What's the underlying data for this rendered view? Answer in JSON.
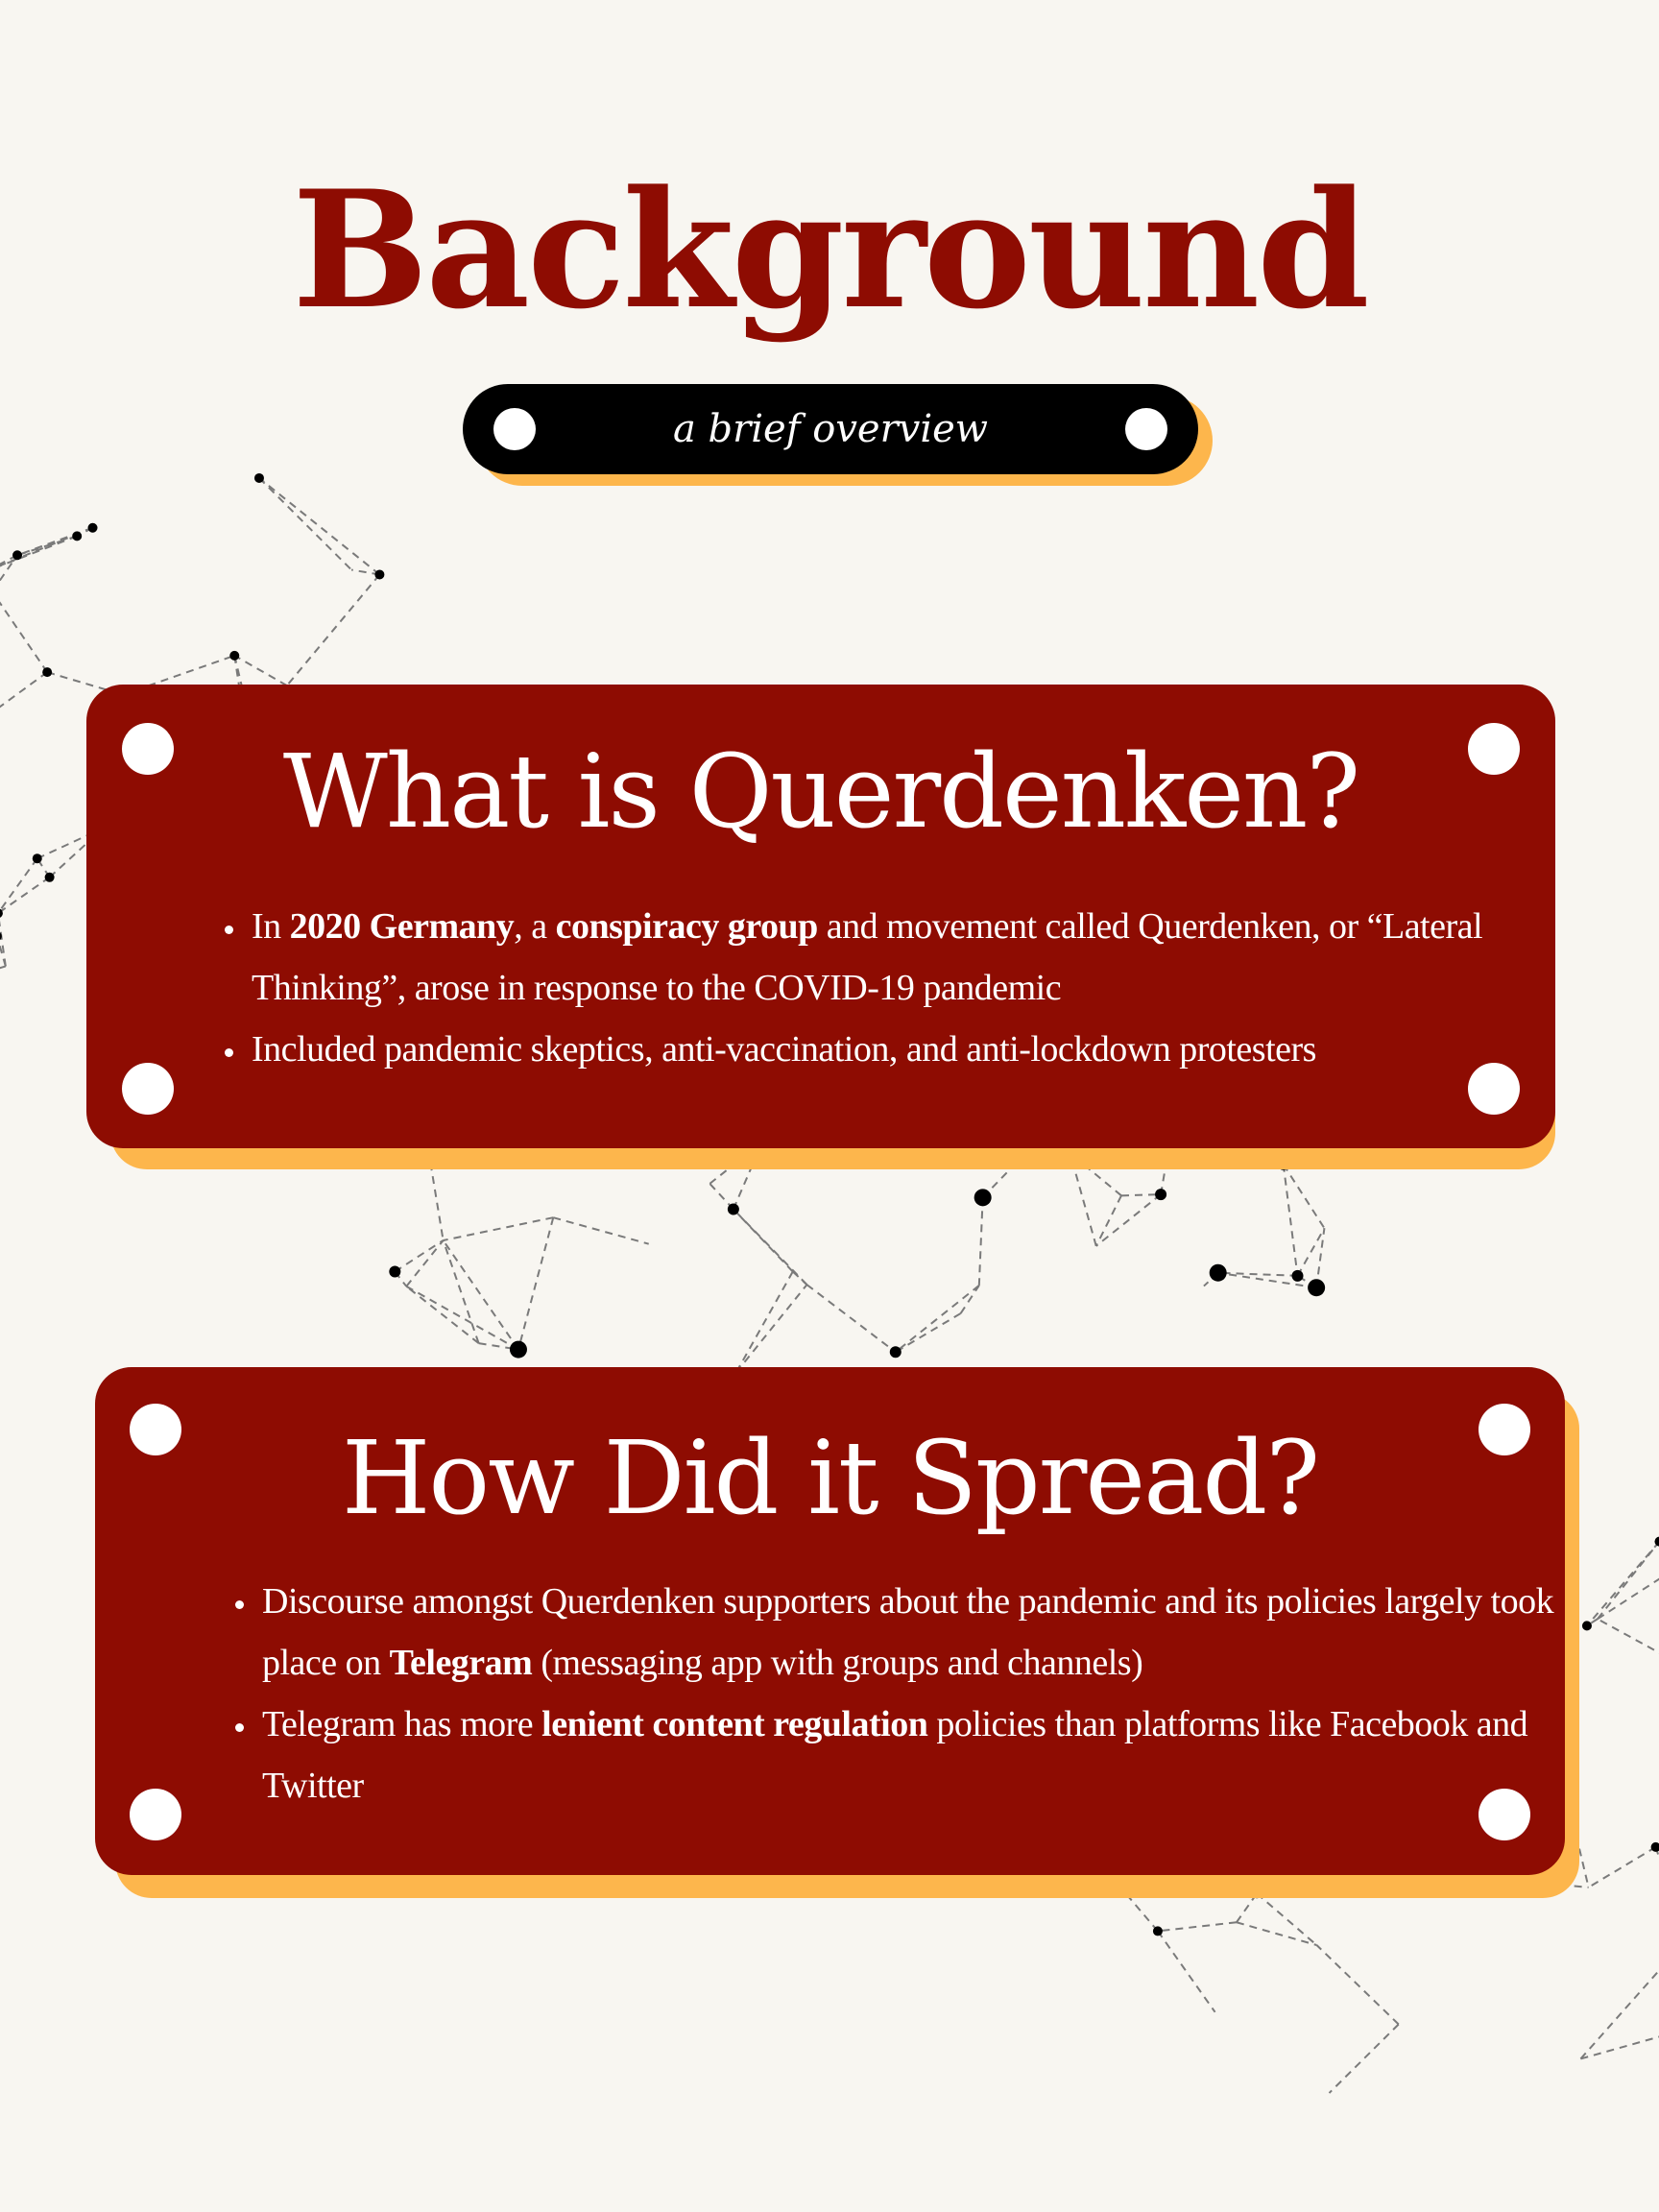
{
  "header": {
    "title": "Background",
    "subtitle": "a brief overview"
  },
  "cards": [
    {
      "heading": "What is Querdenken?",
      "bullets": [
        [
          {
            "t": "In ",
            "b": false
          },
          {
            "t": "2020 Germany",
            "b": true
          },
          {
            "t": ", a ",
            "b": false
          },
          {
            "t": "conspiracy group",
            "b": true
          },
          {
            "t": " and movement called Querdenken, or “Lateral Thinking”, arose in response to the COVID-19 pandemic",
            "b": false
          }
        ],
        [
          {
            "t": "Included pandemic skeptics, anti-vaccination, and anti-lockdown protesters",
            "b": false
          }
        ]
      ]
    },
    {
      "heading": "How Did it Spread?",
      "bullets": [
        [
          {
            "t": "Discourse amongst Querdenken supporters about the pandemic and its policies largely took place on ",
            "b": false
          },
          {
            "t": "Telegram",
            "b": true
          },
          {
            "t": " (messaging app with groups and channels)",
            "b": false
          }
        ],
        [
          {
            "t": "Telegram has more ",
            "b": false
          },
          {
            "t": "lenient content regulation",
            "b": true
          },
          {
            "t": " policies than platforms like Facebook and Twitter",
            "b": false
          }
        ]
      ]
    }
  ],
  "colors": {
    "background": "#f8f6f1",
    "accent_red": "#8e0c02",
    "shadow_orange": "#fdb64c",
    "pill_black": "#000000"
  }
}
